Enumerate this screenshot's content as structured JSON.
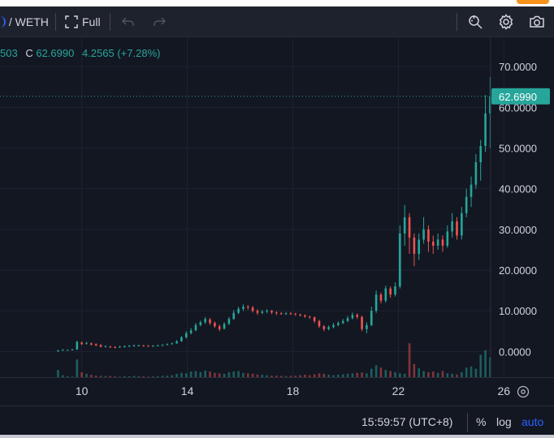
{
  "toolbar": {
    "symbol": "/ WETH",
    "full_label": "Full",
    "icons": [
      "fullscreen-icon",
      "undo-icon",
      "redo-icon",
      "zoom-search-icon",
      "gear-icon",
      "camera-icon"
    ]
  },
  "legend": {
    "prefix": "503",
    "close_label": "C",
    "close_value": "62.6990",
    "change": "4.2565 (+7.28%)"
  },
  "price_label": "62.6990",
  "bottom": {
    "time": "15:59:57 (UTC+8)",
    "percent": "%",
    "log": "log",
    "auto": "auto"
  },
  "colors": {
    "up": "#26a69a",
    "down": "#ef5350",
    "background": "#131722",
    "price_tag": "#26a69a",
    "auto": "#2962ff"
  },
  "chart_data": {
    "type": "candlestick",
    "y_ticks": [
      "70.0000",
      "60.0000",
      "50.0000",
      "40.0000",
      "30.0000",
      "20.0000",
      "10.0000",
      "0.0000"
    ],
    "y_tick_values": [
      70,
      60,
      50,
      40,
      30,
      20,
      10,
      0
    ],
    "ylim": [
      -6.5,
      77
    ],
    "x_ticks": [
      "10",
      "14",
      "18",
      "22",
      "26"
    ],
    "x_tick_days": [
      10,
      14,
      18,
      22,
      26
    ],
    "xlim": [
      6.9,
      27.9
    ],
    "last_price": 62.699,
    "candles": [
      [
        9.1,
        0.2,
        0.3,
        -0.1,
        0.4
      ],
      [
        9.28,
        0.3,
        0.4,
        0.2,
        0.6
      ],
      [
        9.46,
        0.3,
        0.4,
        0.2,
        0.5
      ],
      [
        9.64,
        0.4,
        0.5,
        0.3,
        0.7
      ],
      [
        9.82,
        0.5,
        2.4,
        0.4,
        2.6
      ],
      [
        10.0,
        2.2,
        1.8,
        1.6,
        2.5
      ],
      [
        10.18,
        1.9,
        2.1,
        1.7,
        2.4
      ],
      [
        10.36,
        2.0,
        1.7,
        1.5,
        2.2
      ],
      [
        10.54,
        1.8,
        1.5,
        1.3,
        2.0
      ],
      [
        10.72,
        1.6,
        1.2,
        1.0,
        1.8
      ],
      [
        10.9,
        1.2,
        1.3,
        1.0,
        1.5
      ],
      [
        11.08,
        1.2,
        1.1,
        0.9,
        1.4
      ],
      [
        11.26,
        1.1,
        1.0,
        0.8,
        1.3
      ],
      [
        11.44,
        1.0,
        1.2,
        0.9,
        1.4
      ],
      [
        11.62,
        1.2,
        1.3,
        1.0,
        1.5
      ],
      [
        11.8,
        1.3,
        1.4,
        1.1,
        1.6
      ],
      [
        11.98,
        1.4,
        1.5,
        1.2,
        1.7
      ],
      [
        12.16,
        1.5,
        1.5,
        1.3,
        1.7
      ],
      [
        12.34,
        1.5,
        1.4,
        1.2,
        1.6
      ],
      [
        12.52,
        1.4,
        1.3,
        1.2,
        1.6
      ],
      [
        12.7,
        1.3,
        1.4,
        1.2,
        1.6
      ],
      [
        12.88,
        1.4,
        1.5,
        1.3,
        1.7
      ],
      [
        13.06,
        1.5,
        1.6,
        1.4,
        1.8
      ],
      [
        13.24,
        1.6,
        1.8,
        1.5,
        2.0
      ],
      [
        13.42,
        1.8,
        2.0,
        1.7,
        2.2
      ],
      [
        13.6,
        2.0,
        2.5,
        1.9,
        2.8
      ],
      [
        13.78,
        2.5,
        3.5,
        2.4,
        3.8
      ],
      [
        13.96,
        3.5,
        4.5,
        3.2,
        5.0
      ],
      [
        14.14,
        4.5,
        5.2,
        4.2,
        5.8
      ],
      [
        14.32,
        5.2,
        6.5,
        5.0,
        7.0
      ],
      [
        14.5,
        6.5,
        7.2,
        6.2,
        7.6
      ],
      [
        14.68,
        7.2,
        8.0,
        6.8,
        8.5
      ],
      [
        14.86,
        7.9,
        7.0,
        6.5,
        8.2
      ],
      [
        15.04,
        7.0,
        6.2,
        5.8,
        7.4
      ],
      [
        15.22,
        6.2,
        5.5,
        5.0,
        6.6
      ],
      [
        15.4,
        5.6,
        6.8,
        5.4,
        7.2
      ],
      [
        15.58,
        6.8,
        8.0,
        6.5,
        8.5
      ],
      [
        15.76,
        8.0,
        9.5,
        7.8,
        10.2
      ],
      [
        15.94,
        9.5,
        10.5,
        9.2,
        11.0
      ],
      [
        16.12,
        10.5,
        11.0,
        10.0,
        11.6
      ],
      [
        16.3,
        11.0,
        10.8,
        10.3,
        11.4
      ],
      [
        16.48,
        10.8,
        10.0,
        9.6,
        11.2
      ],
      [
        16.66,
        10.0,
        9.5,
        9.0,
        10.4
      ],
      [
        16.84,
        9.5,
        9.8,
        9.2,
        10.2
      ],
      [
        17.02,
        9.8,
        10.0,
        9.4,
        10.4
      ],
      [
        17.2,
        10.0,
        9.6,
        9.2,
        10.2
      ],
      [
        17.38,
        9.6,
        9.4,
        9.0,
        9.9
      ],
      [
        17.56,
        9.4,
        9.3,
        9.0,
        9.7
      ],
      [
        17.74,
        9.3,
        9.4,
        9.0,
        9.7
      ],
      [
        17.92,
        9.4,
        9.3,
        9.0,
        9.7
      ],
      [
        18.1,
        9.3,
        9.1,
        8.8,
        9.5
      ],
      [
        18.28,
        9.1,
        8.9,
        8.6,
        9.3
      ],
      [
        18.46,
        8.9,
        8.6,
        8.3,
        9.1
      ],
      [
        18.64,
        8.6,
        8.4,
        8.0,
        8.8
      ],
      [
        18.82,
        8.4,
        7.5,
        7.0,
        8.6
      ],
      [
        19.0,
        7.5,
        6.2,
        5.8,
        7.8
      ],
      [
        19.18,
        6.2,
        5.5,
        5.0,
        6.5
      ],
      [
        19.36,
        5.5,
        6.0,
        5.2,
        6.4
      ],
      [
        19.54,
        6.0,
        6.5,
        5.7,
        7.0
      ],
      [
        19.72,
        6.5,
        7.0,
        6.2,
        7.4
      ],
      [
        19.9,
        7.0,
        7.5,
        6.7,
        8.0
      ],
      [
        20.08,
        7.5,
        8.2,
        7.2,
        8.8
      ],
      [
        20.26,
        8.2,
        9.0,
        7.9,
        9.6
      ],
      [
        20.44,
        9.0,
        8.5,
        8.0,
        9.4
      ],
      [
        20.62,
        8.5,
        5.5,
        5.0,
        8.8
      ],
      [
        20.8,
        5.5,
        6.5,
        4.5,
        7.2
      ],
      [
        20.98,
        6.5,
        10.0,
        6.2,
        11.0
      ],
      [
        21.16,
        10.0,
        14.0,
        9.5,
        15.0
      ],
      [
        21.34,
        14.0,
        12.5,
        11.8,
        14.5
      ],
      [
        21.52,
        12.5,
        15.5,
        12.0,
        16.2
      ],
      [
        21.7,
        15.5,
        14.0,
        13.2,
        16.0
      ],
      [
        21.88,
        14.0,
        16.0,
        13.5,
        17.0
      ],
      [
        22.06,
        16.0,
        29.0,
        15.5,
        31.0
      ],
      [
        22.24,
        29.0,
        33.0,
        26.0,
        36.0
      ],
      [
        22.42,
        33.0,
        28.0,
        24.0,
        34.0
      ],
      [
        22.6,
        28.0,
        24.0,
        21.0,
        29.0
      ],
      [
        22.78,
        24.0,
        27.5,
        22.5,
        29.0
      ],
      [
        22.96,
        27.5,
        30.0,
        26.5,
        33.0
      ],
      [
        23.14,
        30.0,
        27.0,
        24.5,
        31.0
      ],
      [
        23.32,
        27.0,
        26.0,
        24.0,
        28.5
      ],
      [
        23.5,
        26.0,
        27.5,
        25.0,
        29.0
      ],
      [
        23.68,
        27.5,
        26.0,
        24.5,
        28.5
      ],
      [
        23.86,
        26.0,
        29.5,
        25.5,
        31.0
      ],
      [
        24.04,
        29.5,
        32.0,
        28.0,
        34.0
      ],
      [
        24.22,
        32.0,
        28.5,
        27.5,
        33.0
      ],
      [
        24.4,
        28.5,
        34.0,
        27.5,
        35.5
      ],
      [
        24.58,
        34.0,
        38.0,
        33.0,
        40.0
      ],
      [
        24.76,
        38.0,
        41.0,
        35.5,
        43.0
      ],
      [
        24.94,
        41.0,
        46.5,
        40.0,
        48.5
      ],
      [
        25.12,
        46.5,
        50.5,
        42.0,
        52.0
      ],
      [
        25.3,
        50.5,
        58.5,
        49.0,
        63.0
      ],
      [
        25.48,
        58.5,
        62.699,
        50.0,
        67.5
      ]
    ],
    "volume_max": 100,
    "volumes": [
      35,
      12,
      8,
      6,
      80,
      25,
      18,
      14,
      10,
      9,
      8,
      9,
      7,
      6,
      8,
      7,
      9,
      8,
      7,
      6,
      7,
      8,
      9,
      10,
      12,
      18,
      22,
      20,
      28,
      30,
      25,
      32,
      28,
      22,
      20,
      18,
      25,
      28,
      30,
      22,
      20,
      18,
      15,
      14,
      12,
      10,
      10,
      9,
      8,
      9,
      10,
      12,
      14,
      12,
      16,
      20,
      18,
      14,
      12,
      14,
      16,
      18,
      20,
      22,
      24,
      20,
      40,
      55,
      45,
      35,
      30,
      25,
      20,
      18,
      150,
      60,
      42,
      30,
      25,
      28,
      22,
      30,
      20,
      18,
      15,
      25,
      45,
      50,
      40,
      100,
      120,
      90
    ]
  }
}
